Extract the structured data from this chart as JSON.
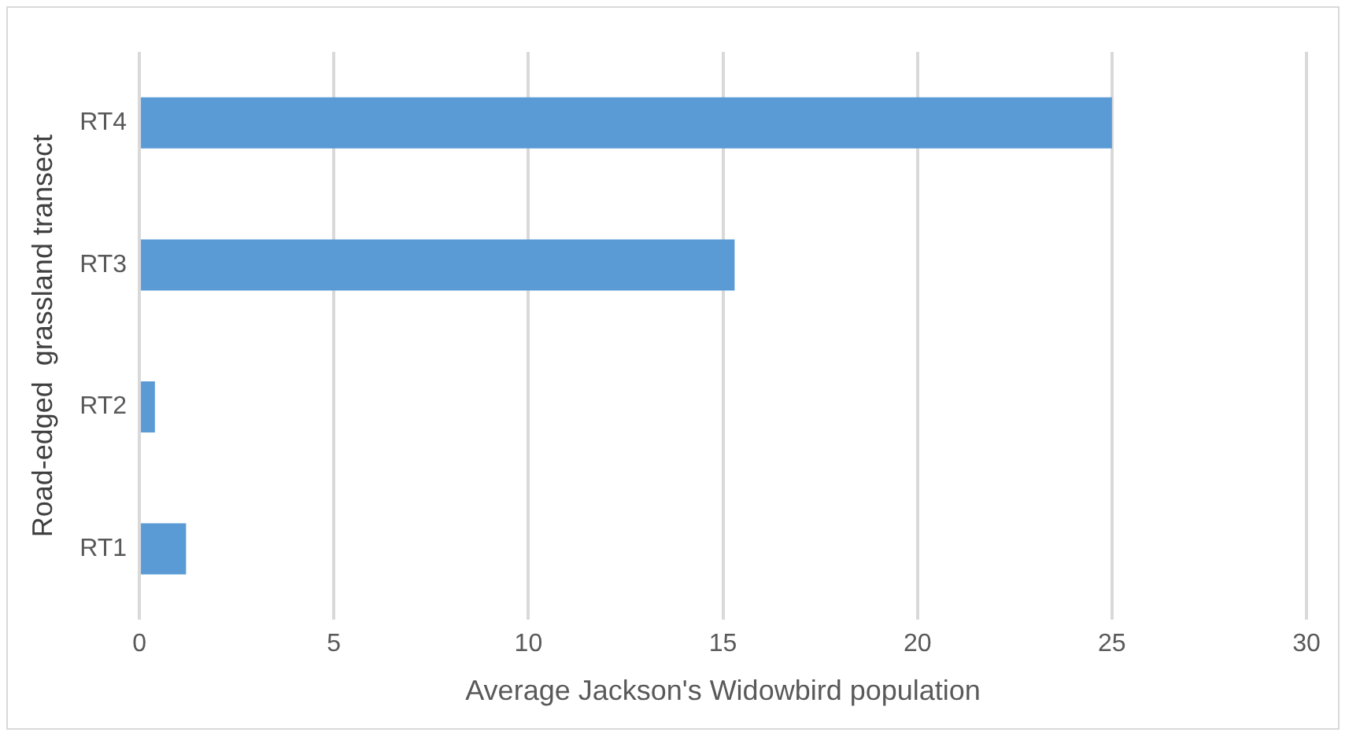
{
  "chart_data": {
    "type": "bar",
    "orientation": "horizontal",
    "xlabel": "Average Jackson's Widowbird population",
    "ylabel": "Road-edged  grassland transect",
    "categories": [
      "RT4",
      "RT3",
      "RT2",
      "RT1"
    ],
    "values": [
      25,
      15.3,
      0.4,
      1.2
    ],
    "color": "#5b9bd5",
    "xlim": [
      0,
      30
    ],
    "xticks": [
      0,
      5,
      10,
      15,
      20,
      25,
      30
    ],
    "grid": "x",
    "legend": false
  }
}
